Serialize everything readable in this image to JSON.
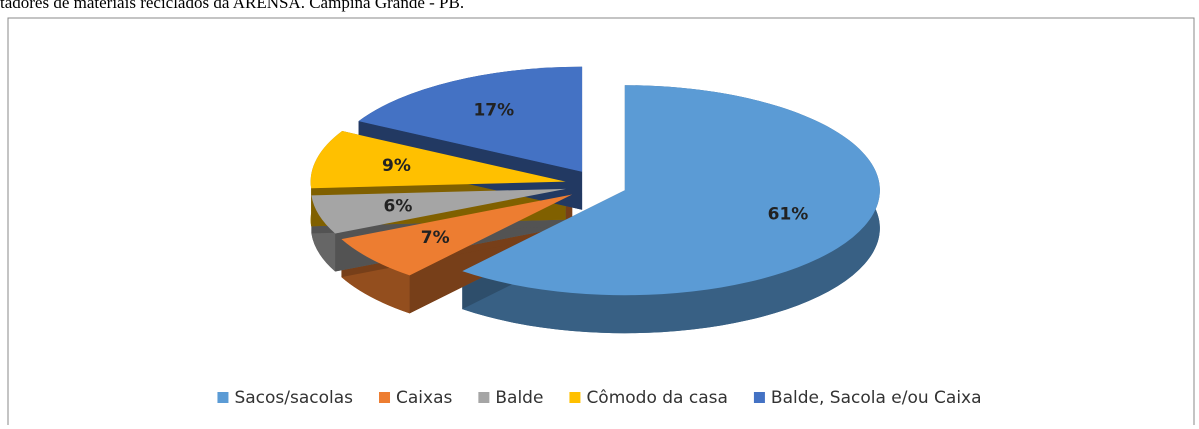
{
  "caption": "tadores de materiais reciclados da ARENSA. Campina Grande - PB.",
  "chart_data": {
    "type": "pie",
    "categories": [
      "Sacos/sacolas",
      "Caixas",
      "Balde",
      "Cômodo da casa",
      "Balde, Sacola e/ou Caixa"
    ],
    "values": [
      61,
      7,
      6,
      9,
      17
    ],
    "value_labels": [
      "61%",
      "7%",
      "6%",
      "9%",
      "17%"
    ],
    "colors": [
      "#5b9bd5",
      "#ed7d31",
      "#a5a5a5",
      "#ffc000",
      "#4472c4"
    ],
    "legend": "bottom"
  }
}
